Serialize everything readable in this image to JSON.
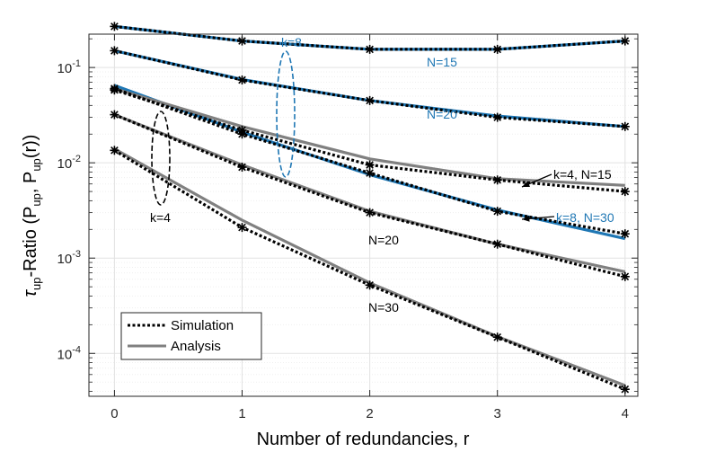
{
  "chart_data": {
    "type": "line",
    "xlabel": "Number of redundancies, r",
    "ylabel": {
      "tau": "τ",
      "tau_sub": "up",
      "p1": "-Ratio (P",
      "p1_sub": "up",
      "p2": ", P",
      "p2_sub": "up",
      "p3": "(r))"
    },
    "x": [
      0,
      1,
      2,
      3,
      4
    ],
    "xlim": [
      -0.2,
      4.1
    ],
    "ylim_log10": [
      -4.45,
      -0.65
    ],
    "y_scale": "log",
    "grid": true,
    "x_ticks": [
      "0",
      "1",
      "2",
      "3",
      "4"
    ],
    "y_ticks": [
      {
        "base": "10",
        "exp": "-1",
        "log": -1
      },
      {
        "base": "10",
        "exp": "-2",
        "log": -2
      },
      {
        "base": "10",
        "exp": "-3",
        "log": -3
      },
      {
        "base": "10",
        "exp": "-4",
        "log": -4
      }
    ],
    "series": [
      {
        "name": "k=8, N=15 analysis",
        "kind": "analysis",
        "color": "#1f77b4",
        "values": [
          0.27,
          0.19,
          0.155,
          0.155,
          0.19
        ]
      },
      {
        "name": "k=8, N=15 simulation",
        "kind": "simulation",
        "color": "#000000",
        "values": [
          0.27,
          0.19,
          0.155,
          0.155,
          0.19
        ]
      },
      {
        "name": "k=8, N=20 analysis",
        "kind": "analysis",
        "color": "#1f77b4",
        "values": [
          0.15,
          0.075,
          0.045,
          0.031,
          0.024
        ]
      },
      {
        "name": "k=8, N=20 simulation",
        "kind": "simulation",
        "color": "#000000",
        "values": [
          0.15,
          0.074,
          0.045,
          0.03,
          0.024
        ]
      },
      {
        "name": "k=8, N=30 analysis",
        "kind": "analysis",
        "color": "#1f77b4",
        "values": [
          0.065,
          0.021,
          0.0075,
          0.0032,
          0.0016
        ]
      },
      {
        "name": "k=8, N=30 simulation",
        "kind": "simulation",
        "color": "#000000",
        "values": [
          0.06,
          0.02,
          0.0078,
          0.0031,
          0.0018
        ]
      },
      {
        "name": "k=4, N=15 analysis",
        "kind": "analysis",
        "color": "#808080",
        "values": [
          0.06,
          0.024,
          0.011,
          0.0068,
          0.0058
        ]
      },
      {
        "name": "k=4, N=15 simulation",
        "kind": "simulation",
        "color": "#000000",
        "values": [
          0.058,
          0.022,
          0.0095,
          0.0066,
          0.005
        ]
      },
      {
        "name": "k=4, N=20 analysis",
        "kind": "analysis",
        "color": "#808080",
        "values": [
          0.032,
          0.0095,
          0.0031,
          0.0014,
          0.00072
        ]
      },
      {
        "name": "k=4, N=20 simulation",
        "kind": "simulation",
        "color": "#000000",
        "values": [
          0.032,
          0.009,
          0.003,
          0.0014,
          0.00064
        ]
      },
      {
        "name": "k=4, N=30 analysis",
        "kind": "analysis",
        "color": "#808080",
        "values": [
          0.014,
          0.0025,
          0.00055,
          0.00015,
          4.6e-05
        ]
      },
      {
        "name": "k=4, N=30 simulation",
        "kind": "simulation",
        "color": "#000000",
        "values": [
          0.0135,
          0.0021,
          0.00052,
          0.000148,
          4.2e-05
        ]
      }
    ],
    "annotations": {
      "k8": "k=8",
      "k4": "k=4",
      "n15": "N=15",
      "n20_blue": "N=20",
      "n20_black": "N=20",
      "n30": "N=30",
      "k4n15": "k=4, N=15",
      "k8n30": "k=8, N=30"
    },
    "legend": {
      "position": "bottom-left",
      "simulation": "Simulation",
      "analysis": "Analysis"
    },
    "colors": {
      "blue": "#1f77b4",
      "gray": "#808080",
      "black": "#000000",
      "grid": "#e2e2e2",
      "axis": "#262626"
    }
  }
}
